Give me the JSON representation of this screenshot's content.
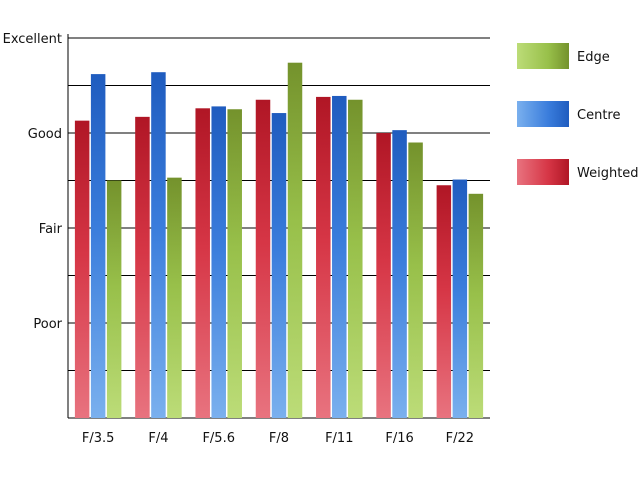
{
  "chart_data": {
    "type": "bar",
    "categories": [
      "F/3.5",
      "F/4",
      "F/5.6",
      "F/8",
      "F/11",
      "F/16",
      "F/22"
    ],
    "y_scale": {
      "min": 0,
      "max": 4
    },
    "y_tick_labels": [
      {
        "value": 1,
        "label": "Poor"
      },
      {
        "value": 2,
        "label": "Fair"
      },
      {
        "value": 3,
        "label": "Good"
      },
      {
        "value": 4,
        "label": "Excellent"
      }
    ],
    "minor_gridline_step": 0.5,
    "series": [
      {
        "name": "Weighted",
        "values": [
          3.13,
          3.17,
          3.26,
          3.35,
          3.38,
          3.0,
          2.45
        ]
      },
      {
        "name": "Centre",
        "values": [
          3.62,
          3.64,
          3.28,
          3.21,
          3.39,
          3.03,
          2.51
        ]
      },
      {
        "name": "Edge",
        "values": [
          2.5,
          2.53,
          3.25,
          3.74,
          3.35,
          2.9,
          2.36
        ]
      }
    ],
    "legend": {
      "position": "right",
      "order": [
        "Edge",
        "Centre",
        "Weighted"
      ]
    },
    "colors": {
      "Weighted": {
        "light": "#e8737f",
        "mid": "#d63646",
        "dark": "#b01625"
      },
      "Centre": {
        "light": "#7ab0ee",
        "mid": "#3a7ddc",
        "dark": "#1f5cbf"
      },
      "Edge": {
        "light": "#bcdc78",
        "mid": "#98c04a",
        "dark": "#74922c"
      }
    }
  }
}
